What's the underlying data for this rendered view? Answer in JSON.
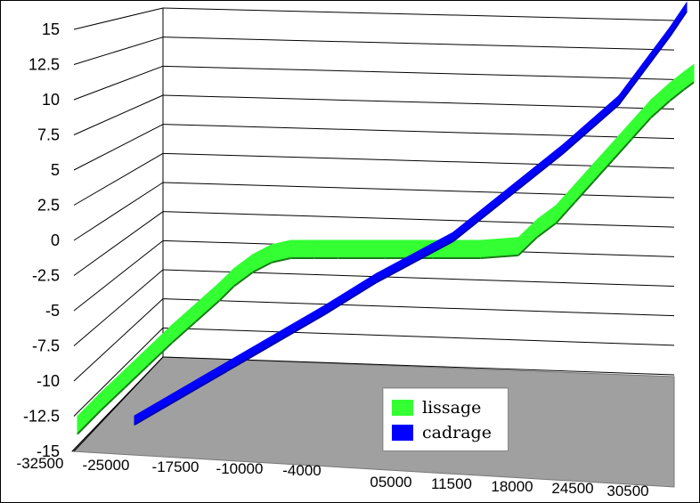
{
  "chart_data": {
    "type": "line",
    "title": "",
    "xlabel": "",
    "ylabel": "",
    "ylim": [
      -15,
      15
    ],
    "yticks": [
      "-15",
      "-12.5",
      "-10",
      "-7.5",
      "-5",
      "-2.5",
      "0",
      "2.5",
      "5",
      "7.5",
      "10",
      "12.5",
      "15"
    ],
    "xticks": [
      "-32500",
      "-25000",
      "-17500",
      "-10000",
      "-4000",
      "05000",
      "11500",
      "18000",
      "24500",
      "30500"
    ],
    "xlim": [
      -32500,
      32500
    ],
    "grid": true,
    "legend": "bottom-right",
    "series": [
      {
        "name": "lissage",
        "color": "#33ff33",
        "x": [
          -32500,
          -30000,
          -27500,
          -25000,
          -22500,
          -20000,
          -17500,
          -16000,
          -14000,
          -12000,
          -10000,
          -7500,
          -5000,
          0,
          5000,
          10000,
          14000,
          16000,
          18000,
          20000,
          22000,
          24000,
          26000,
          28000,
          30000,
          31500,
          32500
        ],
        "y": [
          -12.5,
          -10.8,
          -9.2,
          -7.6,
          -6.0,
          -4.5,
          -3.0,
          -2.0,
          -1.0,
          -0.3,
          0,
          0,
          0,
          0,
          0,
          0,
          0.2,
          1.5,
          2.5,
          4.0,
          5.5,
          7.0,
          8.5,
          10.0,
          11.2,
          12.0,
          12.5
        ]
      },
      {
        "name": "cadrage",
        "color": "#0000ff",
        "x": [
          -32500,
          -25000,
          -17500,
          -10000,
          -4000,
          5000,
          11500,
          18000,
          24500,
          30500,
          32500
        ],
        "y": [
          -15,
          -12.3,
          -9.6,
          -6.9,
          -4.6,
          -1.6,
          1.6,
          4.8,
          8.3,
          13.2,
          15
        ]
      }
    ]
  },
  "legend": {
    "items": [
      {
        "label": "lissage",
        "color": "#33ff33"
      },
      {
        "label": "cadrage",
        "color": "#0000ff"
      }
    ]
  }
}
